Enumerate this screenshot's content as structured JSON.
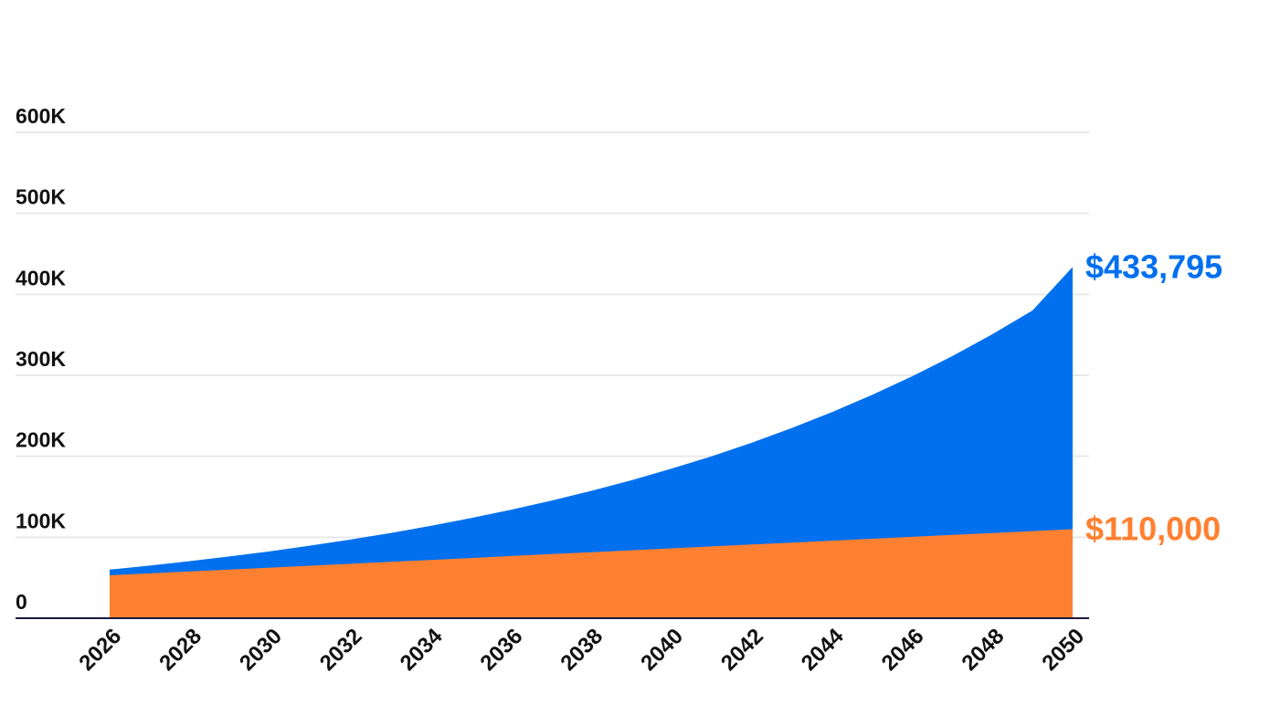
{
  "chart_data": {
    "type": "area",
    "x": [
      2026,
      2027,
      2028,
      2029,
      2030,
      2031,
      2032,
      2033,
      2034,
      2035,
      2036,
      2037,
      2038,
      2039,
      2040,
      2041,
      2042,
      2043,
      2044,
      2045,
      2046,
      2047,
      2048,
      2049,
      2050
    ],
    "xticks": [
      "2026",
      "2028",
      "2030",
      "2032",
      "2034",
      "2036",
      "2038",
      "2040",
      "2042",
      "2044",
      "2046",
      "2048",
      "2050"
    ],
    "yticks": [
      "0",
      "100K",
      "200K",
      "300K",
      "400K",
      "500K",
      "600K"
    ],
    "ylim": [
      0,
      600000
    ],
    "grid": true,
    "series": [
      {
        "color": "#0070ee",
        "values": [
          60000,
          65014,
          70447,
          76335,
          82714,
          89627,
          97117,
          105233,
          114028,
          123557,
          133883,
          145072,
          157196,
          170333,
          184568,
          199993,
          216707,
          234817,
          254441,
          275705,
          298746,
          323712,
          350766,
          380080,
          433795
        ],
        "end_label": "$433,795"
      },
      {
        "color": "#ff8030",
        "values": [
          53000,
          55375,
          57750,
          60125,
          62500,
          64875,
          67250,
          69625,
          72000,
          74375,
          76750,
          79125,
          81500,
          83875,
          86250,
          88625,
          91000,
          93375,
          95750,
          98125,
          100500,
          102875,
          105250,
          107625,
          110000
        ],
        "end_label": "$110,000"
      }
    ]
  }
}
